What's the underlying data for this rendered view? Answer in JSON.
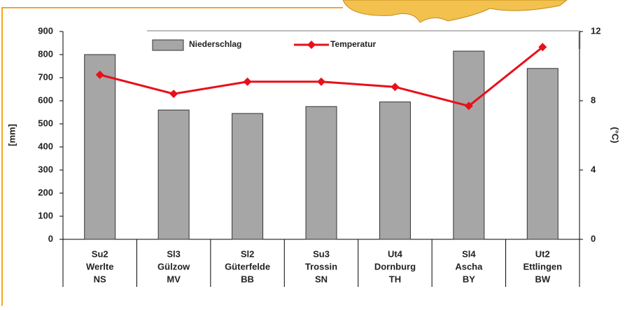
{
  "chart_data": {
    "type": "bar",
    "categories": [
      [
        "Su2",
        "Werlte",
        "NS"
      ],
      [
        "Sl3",
        "Gülzow",
        "MV"
      ],
      [
        "Sl2",
        "Güterfelde",
        "BB"
      ],
      [
        "Su3",
        "Trossin",
        "SN"
      ],
      [
        "Ut4",
        "Dornburg",
        "TH"
      ],
      [
        "Sl4",
        "Ascha",
        "BY"
      ],
      [
        "Ut2",
        "Ettlingen",
        "BW"
      ]
    ],
    "series": [
      {
        "name": "Niederschlag",
        "type": "bar",
        "color": "#a6a6a6",
        "values": [
          800,
          560,
          545,
          575,
          595,
          815,
          740
        ]
      },
      {
        "name": "Temperatur",
        "type": "line",
        "axis": "y2",
        "color": "#e8101a",
        "values": [
          9.5,
          8.4,
          9.1,
          9.1,
          8.8,
          7.7,
          11.1
        ]
      }
    ],
    "ylabel": "[mm]",
    "y2label": "(°C)",
    "ylim": [
      0,
      900
    ],
    "yticks": [
      0,
      100,
      200,
      300,
      400,
      500,
      600,
      700,
      800,
      900
    ],
    "y2lim": [
      0,
      12
    ],
    "y2ticks": [
      0,
      4,
      8,
      12
    ],
    "legend": "top"
  }
}
